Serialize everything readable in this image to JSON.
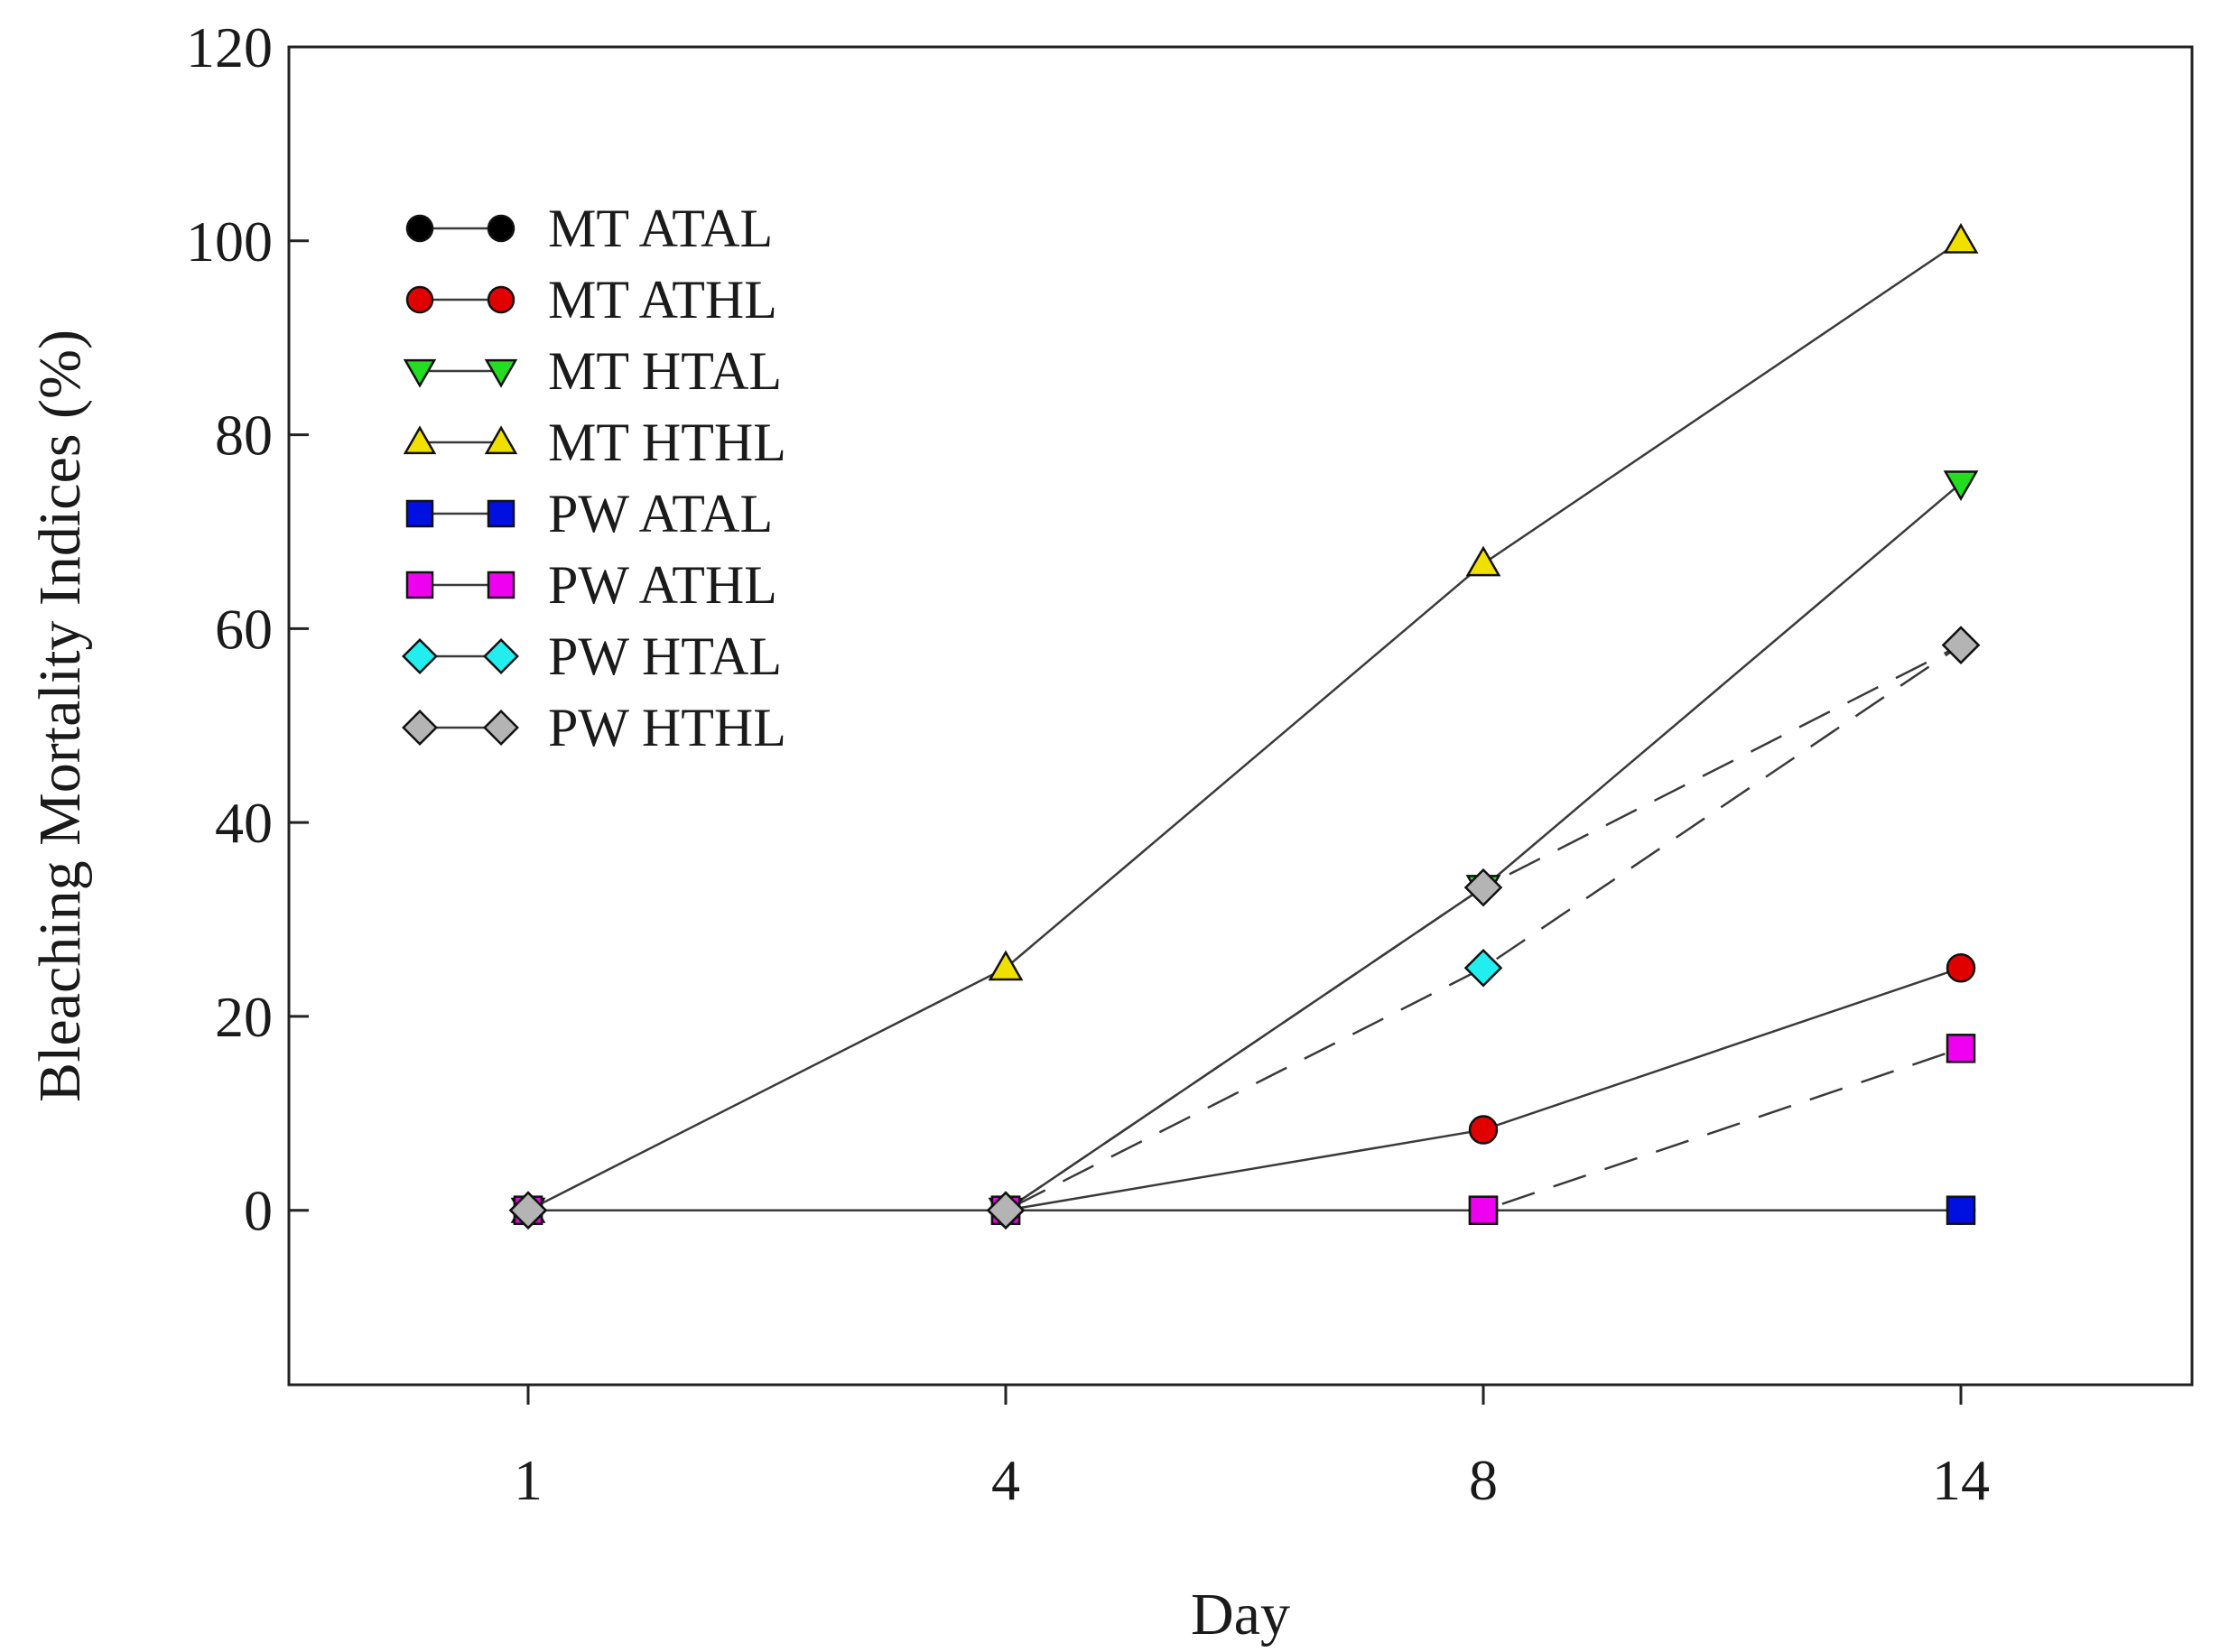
{
  "chart_data": {
    "type": "line",
    "title": "",
    "xlabel": "Day",
    "ylabel": "Bleaching Mortality Indices (%)",
    "categories": [
      "1",
      "4",
      "8",
      "14"
    ],
    "ylim": [
      -18,
      120
    ],
    "yticks": [
      0,
      20,
      40,
      60,
      80,
      100,
      120
    ],
    "legend_position": "top-left",
    "grid": false,
    "series": [
      {
        "name": "MT ATAL",
        "marker": "circle",
        "color": "#000000",
        "line": "solid",
        "values": [
          0,
          0,
          0,
          0
        ]
      },
      {
        "name": "MT ATHL",
        "marker": "circle",
        "color": "#e00000",
        "line": "solid",
        "values": [
          0,
          0,
          8.3,
          25
        ]
      },
      {
        "name": "MT HTAL",
        "marker": "triangle-down",
        "color": "#22dd22",
        "line": "solid",
        "values": [
          0,
          0,
          33.3,
          75
        ]
      },
      {
        "name": "MT HTHL",
        "marker": "triangle-up",
        "color": "#f0e000",
        "line": "solid",
        "values": [
          0,
          25,
          66.7,
          100
        ]
      },
      {
        "name": "PW ATAL",
        "marker": "square",
        "color": "#0010e0",
        "line": "dashed",
        "values": [
          0,
          0,
          0,
          0
        ]
      },
      {
        "name": "PW ATHL",
        "marker": "square",
        "color": "#f000f0",
        "line": "dashed",
        "values": [
          0,
          0,
          0,
          16.7
        ]
      },
      {
        "name": "PW HTAL",
        "marker": "diamond",
        "color": "#22eef0",
        "line": "dashed",
        "values": [
          0,
          0,
          25,
          58.3
        ]
      },
      {
        "name": "PW HTHL",
        "marker": "diamond",
        "color": "#b4b4b4",
        "line": "dashed",
        "values": [
          0,
          0,
          33.3,
          58.3
        ]
      }
    ]
  }
}
